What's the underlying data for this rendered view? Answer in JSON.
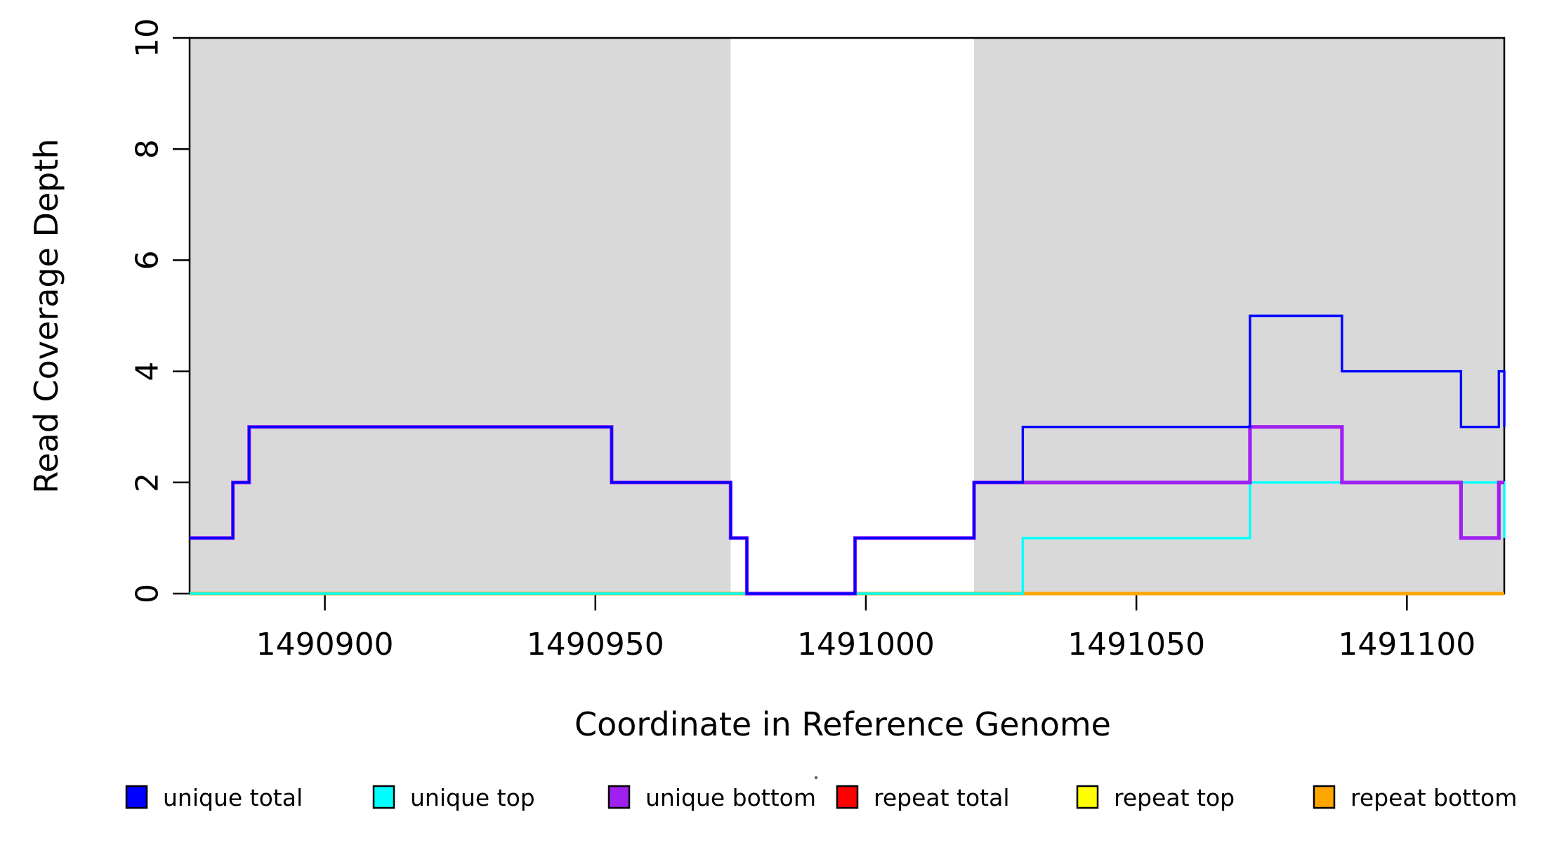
{
  "figure": {
    "background": "#ffffff",
    "axis_color": "#000000"
  },
  "chart_data": {
    "type": "line",
    "subtype": "step-after",
    "title": "",
    "xlabel": "Coordinate in Reference Genome",
    "ylabel": "Read Coverage Depth",
    "xlim": [
      1490875,
      1491118
    ],
    "ylim": [
      0,
      10
    ],
    "grid": false,
    "x_ticks": [
      {
        "value": 1490900,
        "label": "1490900"
      },
      {
        "value": 1490950,
        "label": "1490950"
      },
      {
        "value": 1491000,
        "label": "1491000"
      },
      {
        "value": 1491050,
        "label": "1491050"
      },
      {
        "value": 1491100,
        "label": "1491100"
      }
    ],
    "y_ticks": [
      {
        "value": 0,
        "label": "0"
      },
      {
        "value": 2,
        "label": "2"
      },
      {
        "value": 4,
        "label": "4"
      },
      {
        "value": 6,
        "label": "6"
      },
      {
        "value": 8,
        "label": "8"
      },
      {
        "value": 10,
        "label": "10"
      }
    ],
    "shaded_regions": [
      {
        "x0": 1490875,
        "x1": 1490975,
        "color": "#D9D9D9"
      },
      {
        "x0": 1491020,
        "x1": 1491118,
        "color": "#D9D9D9"
      }
    ],
    "series": [
      {
        "name": "unique total",
        "color": "#0000FF",
        "points": [
          [
            1490875,
            1
          ],
          [
            1490883,
            2
          ],
          [
            1490886,
            3
          ],
          [
            1490953,
            2
          ],
          [
            1490975,
            1
          ],
          [
            1490978,
            0
          ],
          [
            1490998,
            1
          ],
          [
            1491020,
            2
          ],
          [
            1491029,
            3
          ],
          [
            1491071,
            5
          ],
          [
            1491088,
            4
          ],
          [
            1491110,
            3
          ],
          [
            1491117,
            4
          ],
          [
            1491118,
            3
          ]
        ]
      },
      {
        "name": "unique top",
        "color": "#00FFFF",
        "points": [
          [
            1490875,
            0
          ],
          [
            1491029,
            1
          ],
          [
            1491071,
            2
          ],
          [
            1491118,
            1
          ]
        ]
      },
      {
        "name": "unique bottom",
        "color": "#A020F0",
        "points": [
          [
            1490875,
            1
          ],
          [
            1490883,
            2
          ],
          [
            1490886,
            3
          ],
          [
            1490953,
            2
          ],
          [
            1490975,
            1
          ],
          [
            1490978,
            0
          ],
          [
            1490998,
            1
          ],
          [
            1491020,
            2
          ],
          [
            1491071,
            3
          ],
          [
            1491088,
            2
          ],
          [
            1491110,
            1
          ],
          [
            1491117,
            2
          ]
        ]
      },
      {
        "name": "repeat total",
        "color": "#FF0000",
        "points": [
          [
            1490875,
            0
          ]
        ]
      },
      {
        "name": "repeat top",
        "color": "#FFFF00",
        "points": [
          [
            1490875,
            0
          ]
        ]
      },
      {
        "name": "repeat bottom",
        "color": "#FFA500",
        "points": [
          [
            1490875,
            0
          ]
        ]
      }
    ],
    "legend_position": "bottom-horizontal"
  },
  "legend": {
    "entries": [
      {
        "label": "unique total",
        "color": "#0000FF"
      },
      {
        "label": "unique top",
        "color": "#00FFFF"
      },
      {
        "label": "unique bottom",
        "color": "#A020F0"
      },
      {
        "label": "repeat total",
        "color": "#FF0000"
      },
      {
        "label": "repeat top",
        "color": "#FFFF00"
      },
      {
        "label": "repeat bottom",
        "color": "#FFA500"
      }
    ]
  }
}
